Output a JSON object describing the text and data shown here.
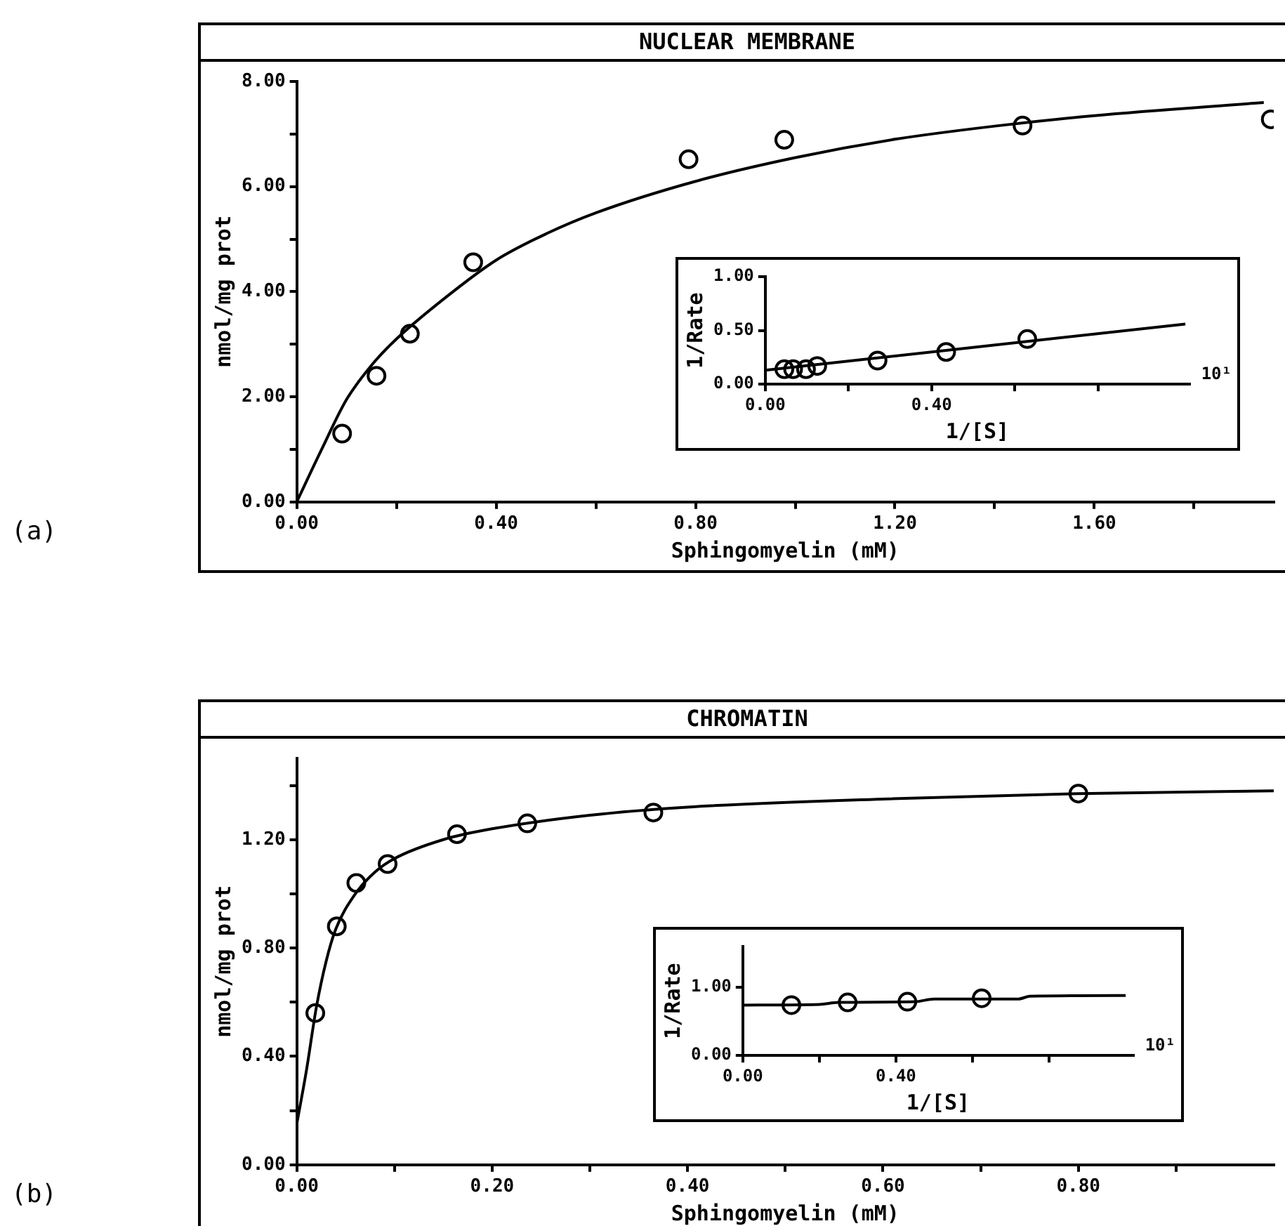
{
  "chart_data": [
    {
      "type": "scatter",
      "title": "NUCLEAR MEMBRANE",
      "xlabel": "Sphingomyelin (mM)",
      "ylabel": "nmol/mg prot",
      "annotations": [
        "(a)"
      ],
      "grid": false,
      "legend": false,
      "xlim": [
        0,
        1.96
      ],
      "ylim": [
        0,
        8
      ],
      "xticks": [
        {
          "value": 0,
          "label": "0.00"
        },
        {
          "value": 0.2,
          "label": null
        },
        {
          "value": 0.4,
          "label": "0.40"
        },
        {
          "value": 0.6,
          "label": null
        },
        {
          "value": 0.8,
          "label": "0.80"
        },
        {
          "value": 1.0,
          "label": null
        },
        {
          "value": 1.2,
          "label": "1.20"
        },
        {
          "value": 1.4,
          "label": null
        },
        {
          "value": 1.6,
          "label": "1.60"
        },
        {
          "value": 1.8,
          "label": null
        }
      ],
      "yticks": [
        {
          "value": 0,
          "label": "0.00"
        },
        {
          "value": 1,
          "label": null
        },
        {
          "value": 2,
          "label": "2.00"
        },
        {
          "value": 3,
          "label": null
        },
        {
          "value": 4,
          "label": "4.00"
        },
        {
          "value": 5,
          "label": null
        },
        {
          "value": 6,
          "label": "6.00"
        },
        {
          "value": 7,
          "label": null
        },
        {
          "value": 8,
          "label": "8.00"
        }
      ],
      "series": [
        {
          "type": "scatter",
          "marker": "circle",
          "color": "#000000",
          "x": [
            0.091,
            0.16,
            0.227,
            0.354,
            0.786,
            0.978,
            1.456,
            1.954
          ],
          "values": [
            1.3,
            2.4,
            3.2,
            4.56,
            6.52,
            6.89,
            7.16,
            7.28
          ]
        },
        {
          "type": "line",
          "marker": "none",
          "color": "#000000",
          "x": [
            0,
            0.05,
            0.1,
            0.15,
            0.2,
            0.3,
            0.4,
            0.5,
            0.6,
            0.8,
            1.0,
            1.2,
            1.4,
            1.6,
            1.94
          ],
          "values": [
            0,
            1.0,
            1.95,
            2.6,
            3.1,
            3.9,
            4.6,
            5.1,
            5.5,
            6.1,
            6.55,
            6.9,
            7.15,
            7.35,
            7.6
          ]
        }
      ]
    },
    {
      "type": "scatter",
      "xlabel": "1/[S]",
      "ylabel": "1/Rate",
      "annotations": [
        "10¹"
      ],
      "grid": false,
      "legend": false,
      "xlim": [
        0,
        1.02
      ],
      "ylim": [
        0,
        1
      ],
      "xticks": [
        {
          "value": 0,
          "label": "0.00"
        },
        {
          "value": 0.2,
          "label": null
        },
        {
          "value": 0.4,
          "label": "0.40"
        },
        {
          "value": 0.6,
          "label": null
        },
        {
          "value": 0.8,
          "label": null
        }
      ],
      "yticks": [
        {
          "value": 0,
          "label": "0.00"
        },
        {
          "value": 0.5,
          "label": "0.50"
        },
        {
          "value": 1,
          "label": "1.00"
        }
      ],
      "series": [
        {
          "type": "scatter",
          "marker": "circle",
          "color": "#000000",
          "x": [
            0.046,
            0.067,
            0.098,
            0.125,
            0.27,
            0.435,
            0.63
          ],
          "values": [
            0.14,
            0.14,
            0.14,
            0.17,
            0.22,
            0.3,
            0.42
          ]
        },
        {
          "type": "line",
          "marker": "none",
          "color": "#000000",
          "x": [
            0,
            1.01
          ],
          "values": [
            0.13,
            0.56
          ]
        }
      ]
    },
    {
      "type": "scatter",
      "title": "CHROMATIN",
      "xlabel": "Sphingomyelin (mM)",
      "ylabel": "nmol/mg prot",
      "annotations": [
        "(b)"
      ],
      "grid": false,
      "legend": false,
      "xlim": [
        0,
        1.0
      ],
      "ylim": [
        0,
        1.5
      ],
      "xticks": [
        {
          "value": 0,
          "label": "0.00"
        },
        {
          "value": 0.1,
          "label": null
        },
        {
          "value": 0.2,
          "label": "0.20"
        },
        {
          "value": 0.3,
          "label": null
        },
        {
          "value": 0.4,
          "label": "0.40"
        },
        {
          "value": 0.5,
          "label": null
        },
        {
          "value": 0.6,
          "label": "0.60"
        },
        {
          "value": 0.7,
          "label": null
        },
        {
          "value": 0.8,
          "label": "0.80"
        },
        {
          "value": 0.9,
          "label": null
        }
      ],
      "yticks": [
        {
          "value": 0,
          "label": "0.00"
        },
        {
          "value": 0.2,
          "label": null
        },
        {
          "value": 0.4,
          "label": "0.40"
        },
        {
          "value": 0.6,
          "label": null
        },
        {
          "value": 0.8,
          "label": "0.80"
        },
        {
          "value": 1.0,
          "label": null
        },
        {
          "value": 1.2,
          "label": "1.20"
        },
        {
          "value": 1.4,
          "label": null
        }
      ],
      "series": [
        {
          "type": "scatter",
          "marker": "circle",
          "color": "#000000",
          "x": [
            0.019,
            0.041,
            0.061,
            0.093,
            0.164,
            0.236,
            0.365,
            0.8
          ],
          "values": [
            0.56,
            0.88,
            1.04,
            1.11,
            1.22,
            1.26,
            1.3,
            1.37
          ]
        },
        {
          "type": "line",
          "marker": "none",
          "color": "#000000",
          "x": [
            0,
            0.01,
            0.02,
            0.03,
            0.04,
            0.06,
            0.08,
            0.1,
            0.15,
            0.2,
            0.3,
            0.4,
            0.6,
            0.8,
            1.0
          ],
          "values": [
            0.15,
            0.35,
            0.58,
            0.75,
            0.87,
            1.0,
            1.08,
            1.13,
            1.2,
            1.24,
            1.29,
            1.32,
            1.35,
            1.37,
            1.38
          ]
        }
      ]
    },
    {
      "type": "scatter",
      "xlabel": "1/[S]",
      "ylabel": "1/Rate",
      "annotations": [
        "10¹"
      ],
      "grid": false,
      "legend": false,
      "xlim": [
        0,
        1.02
      ],
      "ylim": [
        0,
        1.6
      ],
      "xticks": [
        {
          "value": 0,
          "label": "0.00"
        },
        {
          "value": 0.2,
          "label": null
        },
        {
          "value": 0.4,
          "label": "0.40"
        },
        {
          "value": 0.6,
          "label": null
        },
        {
          "value": 0.8,
          "label": null
        }
      ],
      "yticks": [
        {
          "value": 0,
          "label": "0.00"
        },
        {
          "value": 1,
          "label": "1.00"
        }
      ],
      "series": [
        {
          "type": "scatter",
          "marker": "circle",
          "color": "#000000",
          "x": [
            0.127,
            0.274,
            0.43,
            0.624
          ],
          "values": [
            0.74,
            0.78,
            0.79,
            0.84
          ]
        },
        {
          "type": "line",
          "marker": "none",
          "color": "#000000",
          "x": [
            0,
            0.2,
            0.25,
            0.45,
            0.5,
            0.72,
            0.75,
            1.0
          ],
          "values": [
            0.74,
            0.75,
            0.78,
            0.79,
            0.83,
            0.83,
            0.87,
            0.88
          ]
        }
      ]
    }
  ]
}
